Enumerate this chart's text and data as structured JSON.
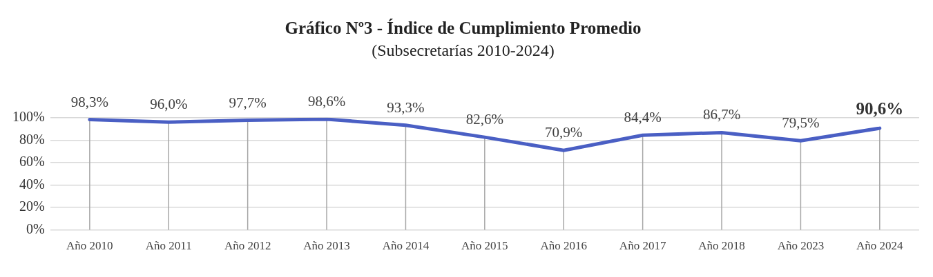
{
  "chart_data": {
    "type": "line",
    "title": "Gráfico Nº3 - Índice de Cumplimiento Promedio",
    "subtitle": "(Subsecretarías 2010-2024)",
    "categories": [
      "Año 2010",
      "Año 2011",
      "Año 2012",
      "Año 2013",
      "Año 2014",
      "Año 2015",
      "Año 2016",
      "Año 2017",
      "Año 2018",
      "Año 2023",
      "Año 2024"
    ],
    "series": [
      {
        "color": "#4a5fc4",
        "values": [
          98.3,
          96.0,
          97.7,
          98.6,
          93.3,
          82.6,
          70.9,
          84.4,
          86.7,
          79.5,
          90.6
        ],
        "value_labels": [
          "98,3%",
          "96,0%",
          "97,7%",
          "98,6%",
          "93,3%",
          "82,6%",
          "70,9%",
          "84,4%",
          "86,7%",
          "79,5%",
          "90,6%"
        ]
      }
    ],
    "ylim": [
      0,
      100
    ],
    "yticks": [
      {
        "value": 0,
        "label": "0%"
      },
      {
        "value": 20,
        "label": "20%"
      },
      {
        "value": 40,
        "label": "40%"
      },
      {
        "value": 60,
        "label": "60%"
      },
      {
        "value": 80,
        "label": "80%"
      },
      {
        "value": 100,
        "label": "100%"
      }
    ],
    "grid": true,
    "legend": false,
    "marker": "none",
    "line_style": "solid"
  }
}
